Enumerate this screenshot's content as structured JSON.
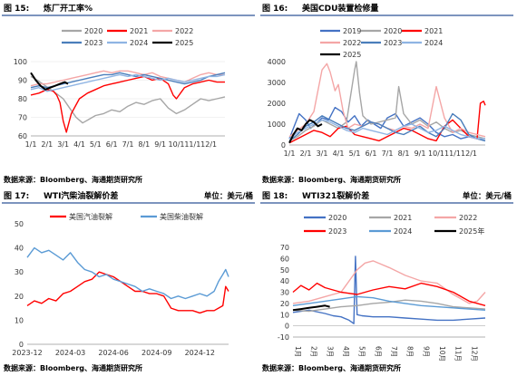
{
  "palette": {
    "c2019": "#4472c4",
    "c2020": "#a6a6a6",
    "c2021": "#ff0000",
    "c2022": "#f4a6a6",
    "c2023": "#4a7ebb",
    "c2024": "#8fb4e3",
    "c2025": "#000000",
    "gasoline": "#ff0000",
    "diesel": "#5b9bd5",
    "rule": "#2f5597"
  },
  "chart_data": [
    {
      "id": "c1",
      "type": "line",
      "fig_no": "图 15:",
      "title": "炼厂开工率%",
      "source": "数据来源：Bloomberg、海通期货研究所",
      "ylim": [
        60,
        100
      ],
      "yticks": [
        60,
        70,
        80,
        90,
        100
      ],
      "xticks": [
        "1/1",
        "2/1",
        "3/1",
        "4/1",
        "5/1",
        "6/1",
        "7/1",
        "8/1",
        "9/1",
        "10/1",
        "11/1",
        "12/1"
      ],
      "series": [
        {
          "name": "2020",
          "color": "#a6a6a6",
          "x": [
            0,
            0.4,
            0.9,
            1.4,
            2,
            2.4,
            2.8,
            3.2,
            3.6,
            4,
            4.5,
            5,
            5.5,
            6,
            6.5,
            7,
            7.5,
            8,
            8.5,
            9,
            9.5,
            10,
            10.5,
            11,
            11.5,
            12
          ],
          "y": [
            92,
            90,
            87,
            84,
            80,
            75,
            70,
            67,
            69,
            71,
            72,
            74,
            73,
            76,
            78,
            77,
            79,
            80,
            75,
            72,
            74,
            77,
            80,
            79,
            80,
            81
          ]
        },
        {
          "name": "2021",
          "color": "#ff0000",
          "x": [
            0,
            0.5,
            1,
            1.4,
            1.6,
            1.8,
            2,
            2.2,
            2.5,
            3,
            3.5,
            4,
            4.5,
            5,
            5.5,
            6,
            6.5,
            7,
            7.5,
            8,
            8.5,
            8.8,
            9,
            9.5,
            10,
            10.5,
            11,
            11.5,
            12
          ],
          "y": [
            82,
            83,
            85,
            84,
            82,
            78,
            68,
            62,
            72,
            80,
            83,
            85,
            87,
            88,
            89,
            90,
            91,
            92,
            90,
            91,
            88,
            82,
            80,
            86,
            88,
            89,
            90,
            89,
            89
          ]
        },
        {
          "name": "2022",
          "color": "#f4a6a6",
          "x": [
            0,
            0.5,
            1,
            1.5,
            2,
            2.5,
            3,
            3.5,
            4,
            4.5,
            5,
            5.5,
            6,
            6.5,
            7,
            7.5,
            8,
            8.5,
            9,
            9.5,
            10,
            10.5,
            11,
            11.5,
            12
          ],
          "y": [
            87,
            88,
            88,
            89,
            90,
            91,
            92,
            93,
            94,
            95,
            94,
            95,
            95,
            94,
            93,
            94,
            92,
            91,
            90,
            89,
            91,
            93,
            94,
            93,
            93
          ]
        },
        {
          "name": "2023",
          "color": "#4a7ebb",
          "x": [
            0,
            0.5,
            1,
            1.5,
            2,
            2.5,
            3,
            3.5,
            4,
            4.5,
            5,
            5.5,
            6,
            6.5,
            7,
            7.5,
            8,
            8.5,
            9,
            9.5,
            10,
            10.5,
            11,
            11.5,
            12
          ],
          "y": [
            86,
            87,
            86,
            87,
            88,
            89,
            90,
            91,
            92,
            93,
            93,
            94,
            93,
            92,
            93,
            92,
            91,
            90,
            89,
            88,
            89,
            90,
            92,
            93,
            94
          ]
        },
        {
          "name": "2024",
          "color": "#8fb4e3",
          "x": [
            0,
            0.5,
            1,
            1.5,
            2,
            2.5,
            3,
            3.5,
            4,
            4.5,
            5,
            5.5,
            6,
            6.5,
            7,
            7.5,
            8,
            8.5,
            9,
            9.5,
            10,
            10.5,
            11,
            11.5,
            12
          ],
          "y": [
            85,
            86,
            84,
            85,
            86,
            87,
            88,
            89,
            90,
            91,
            92,
            93,
            92,
            93,
            92,
            91,
            90,
            91,
            90,
            89,
            90,
            91,
            92,
            92,
            93
          ]
        },
        {
          "name": "2025",
          "color": "#000000",
          "x": [
            0,
            0.3,
            0.6,
            0.9,
            1.2,
            1.5,
            1.8,
            2.1,
            2.3
          ],
          "y": [
            94,
            90,
            87,
            85,
            86,
            87,
            88,
            89,
            88
          ]
        }
      ]
    },
    {
      "id": "c2",
      "type": "line",
      "fig_no": "图 16:",
      "title": "美国CDU装置检修量",
      "source": "数据来源：Bloomberg、海通期货研究所",
      "ylim": [
        0,
        4000
      ],
      "yticks": [
        0,
        1000,
        2000,
        3000,
        4000
      ],
      "xticks": [
        "1/1",
        "2/1",
        "3/1",
        "4/1",
        "5/1",
        "6/1",
        "7/1",
        "8/1",
        "9/1",
        "10/1",
        "11/1",
        "12/1"
      ],
      "series": [
        {
          "name": "2019",
          "color": "#4472c4",
          "x": [
            0,
            0.3,
            0.6,
            1,
            1.3,
            1.6,
            2,
            2.4,
            2.8,
            3.2,
            3.6,
            4,
            4.4,
            4.8,
            5.2,
            5.6,
            6,
            6.5,
            7,
            7.5,
            8,
            8.5,
            9,
            9.5,
            10,
            10.5,
            11,
            11.5,
            12
          ],
          "y": [
            300,
            900,
            1500,
            1200,
            800,
            1000,
            1300,
            1200,
            1800,
            1600,
            1100,
            1400,
            900,
            1200,
            1000,
            800,
            1300,
            1500,
            900,
            1100,
            1300,
            1000,
            600,
            400,
            500,
            300,
            400,
            300,
            200
          ]
        },
        {
          "name": "2020",
          "color": "#a6a6a6",
          "x": [
            0,
            0.5,
            1,
            1.5,
            2,
            2.5,
            3,
            3.5,
            4,
            4.1,
            4.3,
            4.5,
            5,
            5.5,
            6,
            6.5,
            6.7,
            7,
            7.5,
            8,
            8.5,
            9,
            9.5,
            10,
            10.5,
            11,
            11.5,
            12
          ],
          "y": [
            200,
            400,
            700,
            900,
            1200,
            1000,
            800,
            1100,
            3600,
            4000,
            2500,
            1400,
            1000,
            1100,
            1200,
            1300,
            2800,
            1500,
            1000,
            1200,
            900,
            1100,
            800,
            600,
            700,
            500,
            400,
            300
          ]
        },
        {
          "name": "2021",
          "color": "#ff0000",
          "x": [
            0,
            0.5,
            1,
            1.5,
            2,
            2.5,
            3,
            3.5,
            4,
            4.5,
            5,
            5.5,
            6,
            6.5,
            7,
            7.5,
            8,
            8.5,
            9,
            9.5,
            10,
            10.5,
            11,
            11.5,
            11.7,
            11.9,
            12
          ],
          "y": [
            100,
            300,
            500,
            700,
            600,
            400,
            800,
            900,
            500,
            400,
            300,
            200,
            400,
            600,
            800,
            700,
            500,
            300,
            200,
            900,
            1200,
            800,
            400,
            300,
            2000,
            2100,
            1900
          ]
        },
        {
          "name": "2022",
          "color": "#f4a6a6",
          "x": [
            0,
            0.5,
            1,
            1.5,
            2,
            2.3,
            2.5,
            2.8,
            3,
            3.3,
            3.6,
            4,
            4.5,
            5,
            5.5,
            6,
            6.5,
            7,
            7.5,
            8,
            8.5,
            9,
            9.5,
            10,
            10.5,
            11,
            11.5,
            12
          ],
          "y": [
            400,
            700,
            1000,
            1600,
            3600,
            3900,
            3500,
            2600,
            2900,
            1600,
            800,
            1000,
            900,
            1100,
            1000,
            800,
            700,
            900,
            800,
            1000,
            800,
            2800,
            1300,
            600,
            800,
            600,
            500,
            400
          ]
        },
        {
          "name": "2023",
          "color": "#4a7ebb",
          "x": [
            0,
            0.5,
            1,
            1.5,
            2,
            2.5,
            3,
            3.5,
            4,
            4.5,
            5,
            5.5,
            6,
            6.5,
            7,
            7.5,
            8,
            8.5,
            9,
            9.5,
            10,
            10.5,
            11,
            11.5,
            12
          ],
          "y": [
            200,
            500,
            900,
            1100,
            1400,
            1200,
            1000,
            800,
            700,
            900,
            1100,
            1000,
            800,
            600,
            500,
            700,
            900,
            600,
            400,
            800,
            1500,
            1200,
            500,
            300,
            200
          ]
        },
        {
          "name": "2024",
          "color": "#8fb4e3",
          "x": [
            0,
            0.5,
            1,
            1.5,
            2,
            2.5,
            3,
            3.5,
            4,
            4.5,
            5,
            5.5,
            6,
            6.5,
            7,
            7.5,
            8,
            8.5,
            9,
            9.5,
            10,
            10.5,
            11,
            11.5,
            12
          ],
          "y": [
            300,
            600,
            800,
            1000,
            1200,
            1100,
            900,
            700,
            600,
            800,
            700,
            600,
            500,
            700,
            900,
            1000,
            800,
            600,
            700,
            900,
            700,
            500,
            400,
            300,
            300
          ]
        },
        {
          "name": "2025",
          "color": "#000000",
          "x": [
            0,
            0.25,
            0.5,
            0.75,
            1,
            1.25,
            1.5,
            1.75,
            2
          ],
          "y": [
            100,
            500,
            800,
            700,
            1000,
            1200,
            1100,
            900,
            1000
          ]
        }
      ]
    },
    {
      "id": "c3",
      "type": "line",
      "fig_no": "图 17:",
      "title": "WTI汽柴油裂解价差",
      "unit": "单位：美元/桶",
      "source": "数据来源：Bloomberg、海通期货研究所",
      "ylim": [
        0,
        50
      ],
      "yticks": [
        0,
        10,
        20,
        30,
        40,
        50
      ],
      "xticks": [
        "2023-12",
        "2024-03",
        "2024-06",
        "2024-09",
        "2024-12"
      ],
      "series": [
        {
          "name": "美国汽油裂解",
          "color": "#ff0000",
          "x": [
            0,
            0.5,
            1,
            1.5,
            2,
            2.5,
            3,
            3.5,
            4,
            4.5,
            5,
            5.5,
            6,
            6.5,
            7,
            7.5,
            8,
            8.5,
            9,
            9.5,
            10,
            10.5,
            11,
            11.5,
            12,
            12.5,
            13,
            13.3,
            13.6,
            13.8,
            14
          ],
          "y": [
            16,
            18,
            17,
            19,
            18,
            21,
            22,
            24,
            26,
            27,
            30,
            29,
            28,
            26,
            24,
            22,
            22,
            21,
            21,
            20,
            15,
            14,
            14,
            14,
            13,
            14,
            14,
            15,
            16,
            24,
            22
          ]
        },
        {
          "name": "美国柴油裂解",
          "color": "#5b9bd5",
          "x": [
            0,
            0.5,
            1,
            1.5,
            2,
            2.5,
            3,
            3.5,
            4,
            4.5,
            5,
            5.5,
            6,
            6.5,
            7,
            7.5,
            8,
            8.5,
            9,
            9.5,
            10,
            10.5,
            11,
            11.5,
            12,
            12.5,
            13,
            13.3,
            13.6,
            13.8,
            14
          ],
          "y": [
            36,
            40,
            38,
            39,
            37,
            35,
            38,
            34,
            31,
            30,
            28,
            29,
            27,
            26,
            25,
            24,
            22,
            23,
            22,
            21,
            19,
            20,
            19,
            20,
            21,
            20,
            22,
            26,
            29,
            31,
            28
          ]
        }
      ]
    },
    {
      "id": "c4",
      "type": "line",
      "fig_no": "图 18:",
      "title": "WTI321裂解价差",
      "unit": "单位：美元/桶",
      "source": "数据来源：Bloomberg、海通期货研究所",
      "ylim": [
        -10,
        70
      ],
      "yticks": [
        -10,
        0,
        10,
        20,
        30,
        40,
        50,
        60,
        70
      ],
      "xticks": [
        "1月",
        "2月",
        "3月",
        "4月",
        "5月",
        "6月",
        "7月",
        "8月",
        "9月",
        "10月",
        "11月",
        "12月"
      ],
      "series": [
        {
          "name": "2020",
          "color": "#4472c4",
          "x": [
            0,
            1,
            2,
            2.5,
            3,
            3.5,
            3.8,
            3.9,
            4,
            4.3,
            5,
            6,
            7,
            8,
            9,
            10,
            11,
            12
          ],
          "y": [
            12,
            14,
            11,
            9,
            8,
            5,
            2,
            62,
            10,
            9,
            8,
            8,
            7,
            6,
            5,
            5,
            6,
            7
          ]
        },
        {
          "name": "2021",
          "color": "#a6a6a6",
          "x": [
            0,
            1,
            2,
            3,
            4,
            5,
            6,
            7,
            8,
            9,
            10,
            11,
            12
          ],
          "y": [
            14,
            13,
            15,
            17,
            18,
            20,
            21,
            23,
            22,
            20,
            17,
            16,
            15
          ]
        },
        {
          "name": "2022",
          "color": "#f4a6a6",
          "x": [
            0,
            1,
            2,
            3,
            4,
            4.5,
            5,
            5.5,
            6,
            7,
            8,
            9,
            10,
            11,
            11.5,
            12
          ],
          "y": [
            20,
            22,
            26,
            30,
            50,
            56,
            58,
            55,
            52,
            45,
            40,
            38,
            28,
            20,
            22,
            30
          ]
        },
        {
          "name": "2023",
          "color": "#ff0000",
          "x": [
            0,
            0.5,
            1,
            1.5,
            2,
            3,
            4,
            5,
            6,
            7,
            8,
            9,
            10,
            11,
            12
          ],
          "y": [
            30,
            36,
            32,
            38,
            34,
            30,
            28,
            32,
            35,
            33,
            38,
            35,
            30,
            22,
            18
          ]
        },
        {
          "name": "2024",
          "color": "#5b9bd5",
          "x": [
            0,
            1,
            2,
            3,
            4,
            5,
            6,
            7,
            8,
            9,
            10,
            11,
            12
          ],
          "y": [
            18,
            20,
            22,
            24,
            26,
            25,
            22,
            20,
            18,
            17,
            16,
            15,
            14
          ]
        },
        {
          "name": "2025年",
          "color": "#000000",
          "x": [
            0,
            0.5,
            1,
            1.5,
            2,
            2.3
          ],
          "y": [
            14,
            15,
            16,
            17,
            18,
            17
          ]
        }
      ]
    }
  ]
}
